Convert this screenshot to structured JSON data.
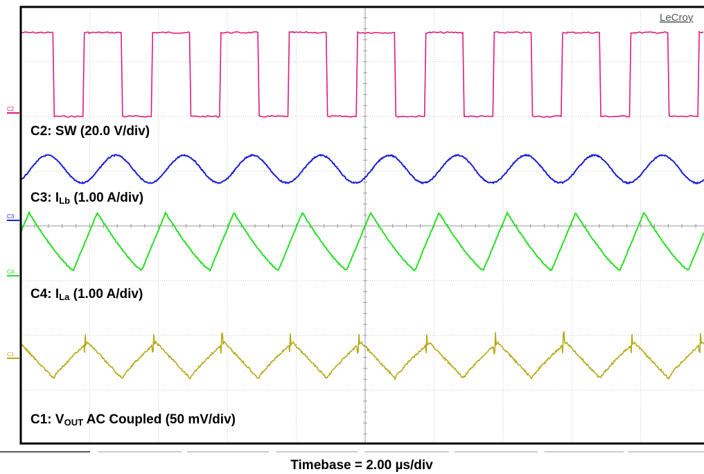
{
  "brand": "LeCroy",
  "timebase": "Timebase = 2.00 µs/div",
  "chart_data": {
    "type": "line",
    "title": "",
    "grid": true,
    "x_unit": "µs",
    "x_per_div": 2.0,
    "x_divisions": 10,
    "cycles": 10,
    "series": [
      {
        "name": "C2",
        "marker": "C2",
        "label_pre": "C2: SW (20.0 V/div)",
        "label_sub": "",
        "label_post": "",
        "color": "#e0187a",
        "scale": "20.0 V/div",
        "shape": "square"
      },
      {
        "name": "C3",
        "marker": "C3",
        "label_pre": "C3: I",
        "label_sub": "Lb",
        "label_post": " (1.00 A/div)",
        "color": "#1c1cd6",
        "scale": "1.00 A/div",
        "shape": "sine",
        "amplitude_div": 0.35
      },
      {
        "name": "C4",
        "marker": "C4",
        "label_pre": "C4: I",
        "label_sub": "La",
        "label_post": " (1.00 A/div)",
        "color": "#22e022",
        "scale": "1.00 A/div",
        "shape": "triangle",
        "amplitude_div": 0.8
      },
      {
        "name": "C1",
        "marker": "C1",
        "label_pre": "C1: V",
        "label_sub": "OUT",
        "label_post": " AC Coupled (50 mV/div)",
        "color": "#b5a916",
        "scale": "50 mV/div",
        "shape": "ripple"
      }
    ]
  }
}
